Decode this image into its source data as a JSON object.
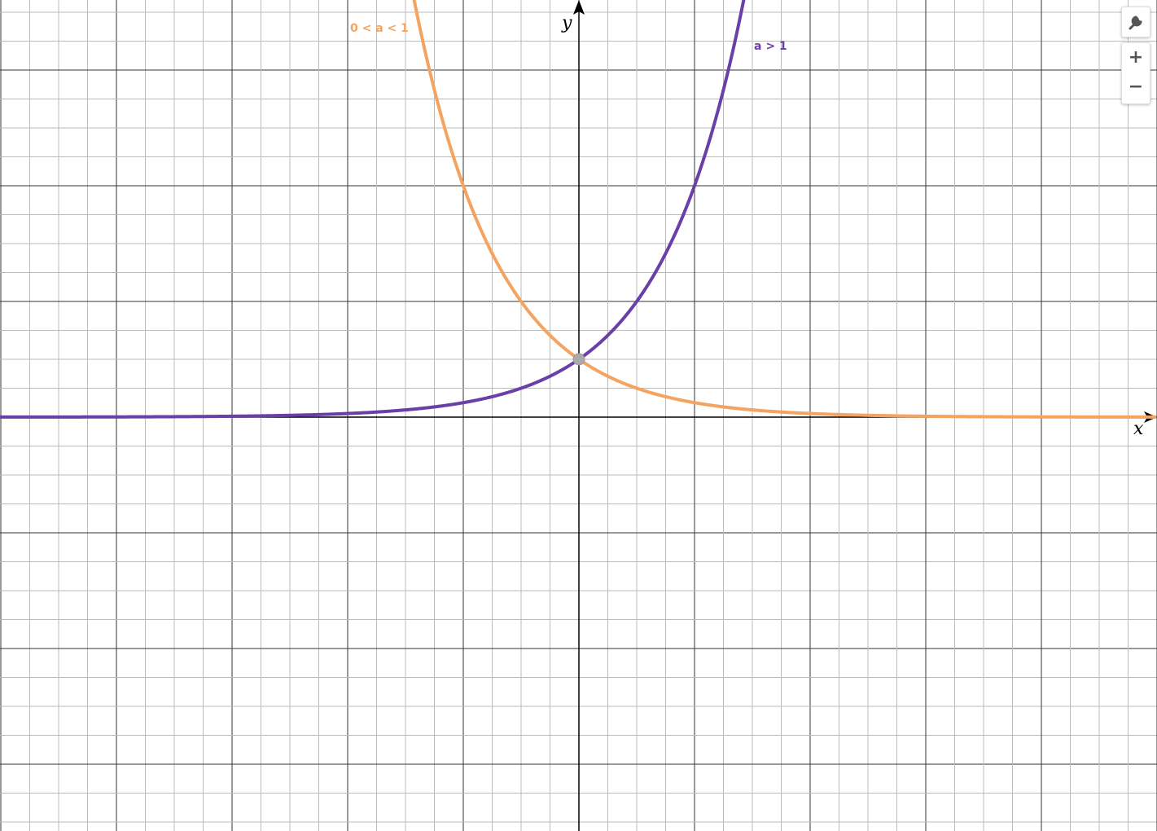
{
  "graph": {
    "curve_labels": [
      "0 < a < 1",
      "a > 1"
    ],
    "axes": {
      "x": "x",
      "y": "y"
    }
  },
  "toolbar": {
    "zoom_in": "+",
    "zoom_out": "−"
  }
}
